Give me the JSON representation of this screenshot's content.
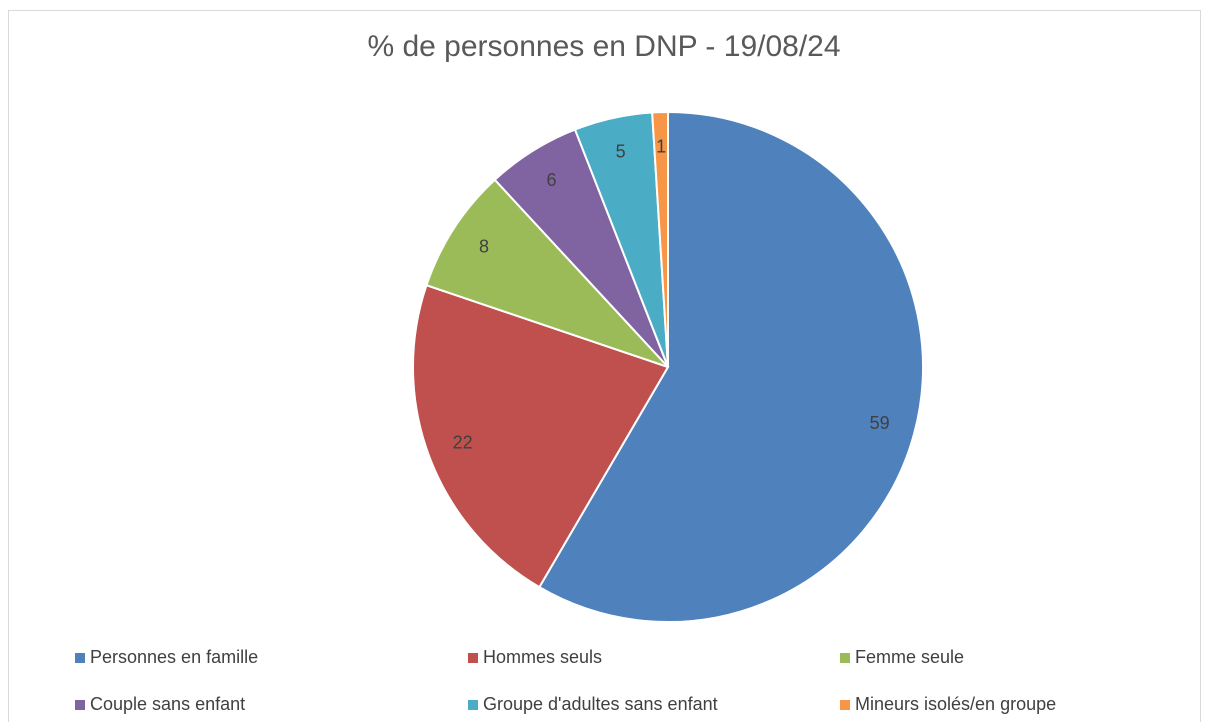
{
  "chart_data": {
    "type": "pie",
    "title": "% de personnes en DNP - 19/08/24",
    "categories": [
      "Personnes en famille",
      "Hommes seuls",
      "Femme seule",
      "Couple sans enfant",
      "Groupe d'adultes sans enfant",
      "Mineurs isolés/en groupe"
    ],
    "values": [
      59,
      22,
      8,
      6,
      5,
      1
    ],
    "colors": [
      "#4f81bd",
      "#c0504d",
      "#9bbb59",
      "#8064a2",
      "#4bacc6",
      "#f79646"
    ],
    "legend": "bottom"
  }
}
